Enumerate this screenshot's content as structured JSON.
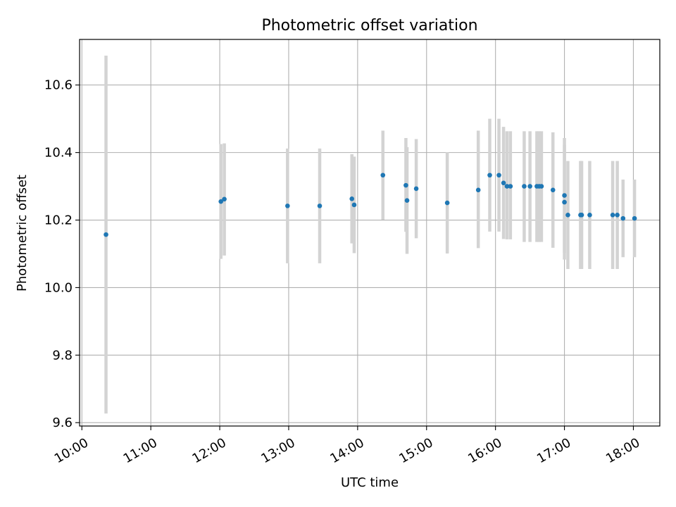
{
  "chart_data": {
    "type": "scatter",
    "title": "Photometric offset variation",
    "xlabel": "UTC time",
    "ylabel": "Photometric offset",
    "x_ticks": [
      "10:00",
      "11:00",
      "12:00",
      "13:00",
      "14:00",
      "15:00",
      "16:00",
      "17:00",
      "18:00"
    ],
    "y_ticks": [
      "9.6",
      "9.8",
      "10.0",
      "10.2",
      "10.4",
      "10.6"
    ],
    "xlim": [
      "09:58",
      "18:23"
    ],
    "ylim": [
      9.59,
      10.735
    ],
    "grid": true,
    "legend": "none",
    "colors": {
      "point": "#1f77b4",
      "errorbar": "#d3d3d3",
      "grid": "#b0b0b0"
    },
    "points": [
      {
        "x": "10:21",
        "y": 10.157,
        "lo": 9.627,
        "hi": 10.687
      },
      {
        "x": "12:01",
        "y": 10.255,
        "lo": 10.085,
        "hi": 10.425
      },
      {
        "x": "12:04",
        "y": 10.262,
        "lo": 10.095,
        "hi": 10.427
      },
      {
        "x": "12:59",
        "y": 10.242,
        "lo": 10.072,
        "hi": 10.412
      },
      {
        "x": "13:27",
        "y": 10.242,
        "lo": 10.072,
        "hi": 10.412
      },
      {
        "x": "13:55",
        "y": 10.263,
        "lo": 10.131,
        "hi": 10.395
      },
      {
        "x": "13:57",
        "y": 10.245,
        "lo": 10.102,
        "hi": 10.388
      },
      {
        "x": "14:22",
        "y": 10.333,
        "lo": 10.201,
        "hi": 10.465
      },
      {
        "x": "14:42",
        "y": 10.303,
        "lo": 10.165,
        "hi": 10.443
      },
      {
        "x": "14:43",
        "y": 10.258,
        "lo": 10.1,
        "hi": 10.416
      },
      {
        "x": "14:51",
        "y": 10.293,
        "lo": 10.146,
        "hi": 10.44
      },
      {
        "x": "15:18",
        "y": 10.251,
        "lo": 10.101,
        "hi": 10.401
      },
      {
        "x": "15:45",
        "y": 10.289,
        "lo": 10.117,
        "hi": 10.465
      },
      {
        "x": "15:55",
        "y": 10.333,
        "lo": 10.166,
        "hi": 10.5
      },
      {
        "x": "16:03",
        "y": 10.333,
        "lo": 10.166,
        "hi": 10.5
      },
      {
        "x": "16:07",
        "y": 10.31,
        "lo": 10.144,
        "hi": 10.476
      },
      {
        "x": "16:10",
        "y": 10.3,
        "lo": 10.143,
        "hi": 10.463
      },
      {
        "x": "16:13",
        "y": 10.3,
        "lo": 10.143,
        "hi": 10.463
      },
      {
        "x": "16:25",
        "y": 10.3,
        "lo": 10.135,
        "hi": 10.463
      },
      {
        "x": "16:30",
        "y": 10.3,
        "lo": 10.135,
        "hi": 10.463
      },
      {
        "x": "16:36",
        "y": 10.3,
        "lo": 10.135,
        "hi": 10.463
      },
      {
        "x": "16:38",
        "y": 10.3,
        "lo": 10.135,
        "hi": 10.463
      },
      {
        "x": "16:40",
        "y": 10.3,
        "lo": 10.135,
        "hi": 10.463
      },
      {
        "x": "16:50",
        "y": 10.289,
        "lo": 10.118,
        "hi": 10.46
      },
      {
        "x": "17:00",
        "y": 10.273,
        "lo": 10.103,
        "hi": 10.443
      },
      {
        "x": "17:00",
        "y": 10.253,
        "lo": 10.083,
        "hi": 10.423
      },
      {
        "x": "17:03",
        "y": 10.215,
        "lo": 10.055,
        "hi": 10.375
      },
      {
        "x": "17:14",
        "y": 10.215,
        "lo": 10.055,
        "hi": 10.375
      },
      {
        "x": "17:15",
        "y": 10.215,
        "lo": 10.055,
        "hi": 10.375
      },
      {
        "x": "17:22",
        "y": 10.215,
        "lo": 10.055,
        "hi": 10.375
      },
      {
        "x": "17:42",
        "y": 10.215,
        "lo": 10.055,
        "hi": 10.375
      },
      {
        "x": "17:46",
        "y": 10.215,
        "lo": 10.055,
        "hi": 10.375
      },
      {
        "x": "17:51",
        "y": 10.205,
        "lo": 10.09,
        "hi": 10.32
      },
      {
        "x": "18:01",
        "y": 10.205,
        "lo": 10.09,
        "hi": 10.32
      }
    ]
  }
}
